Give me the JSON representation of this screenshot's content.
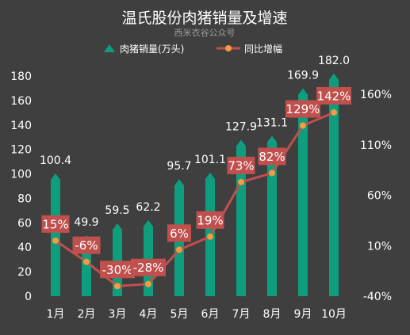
{
  "header": {
    "title": "温氏股份肉猪销量及增速",
    "subtitle": "西米衣谷公众号"
  },
  "legend": {
    "bar_label": "肉猪销量(万头)",
    "line_label": "同比增幅"
  },
  "colors": {
    "background": "#3f3f3f",
    "bar": "#0e9e7e",
    "bar_cap": "#14b592",
    "line": "#c0504d",
    "marker": "#f59b42",
    "label_box": "#c0504d",
    "text": "#ffffff"
  },
  "chart_data": {
    "type": "bar",
    "title": "温氏股份肉猪销量及增速",
    "categories": [
      "1月",
      "2月",
      "3月",
      "4月",
      "5月",
      "6月",
      "7月",
      "8月",
      "9月",
      "10月"
    ],
    "series": [
      {
        "name": "肉猪销量(万头)",
        "type": "bar",
        "axis": "left",
        "values": [
          100.4,
          49.9,
          59.5,
          62.2,
          95.7,
          101.1,
          127.9,
          131.1,
          169.9,
          182.0
        ],
        "labels": [
          "100.4",
          "49.9",
          "59.5",
          "62.2",
          "95.7",
          "101.1",
          "127.9",
          "131.1",
          "169.9",
          "182.0"
        ]
      },
      {
        "name": "同比增幅",
        "type": "line",
        "axis": "right",
        "values": [
          15,
          -6,
          -30,
          -28,
          6,
          19,
          73,
          82,
          129,
          142
        ],
        "labels": [
          "15%",
          "-6%",
          "-30%",
          "-28%",
          "6%",
          "19%",
          "73%",
          "82%",
          "129%",
          "142%"
        ]
      }
    ],
    "y_left": {
      "min": 0,
      "max": 180,
      "ticks": [
        "0",
        "20",
        "40",
        "60",
        "80",
        "100",
        "120",
        "140",
        "160",
        "180"
      ]
    },
    "y_right": {
      "min": -40,
      "max": 160,
      "ticks": [
        "-40%",
        "10%",
        "60%",
        "110%",
        "160%"
      ]
    },
    "grid": false,
    "legend_position": "top-center"
  }
}
